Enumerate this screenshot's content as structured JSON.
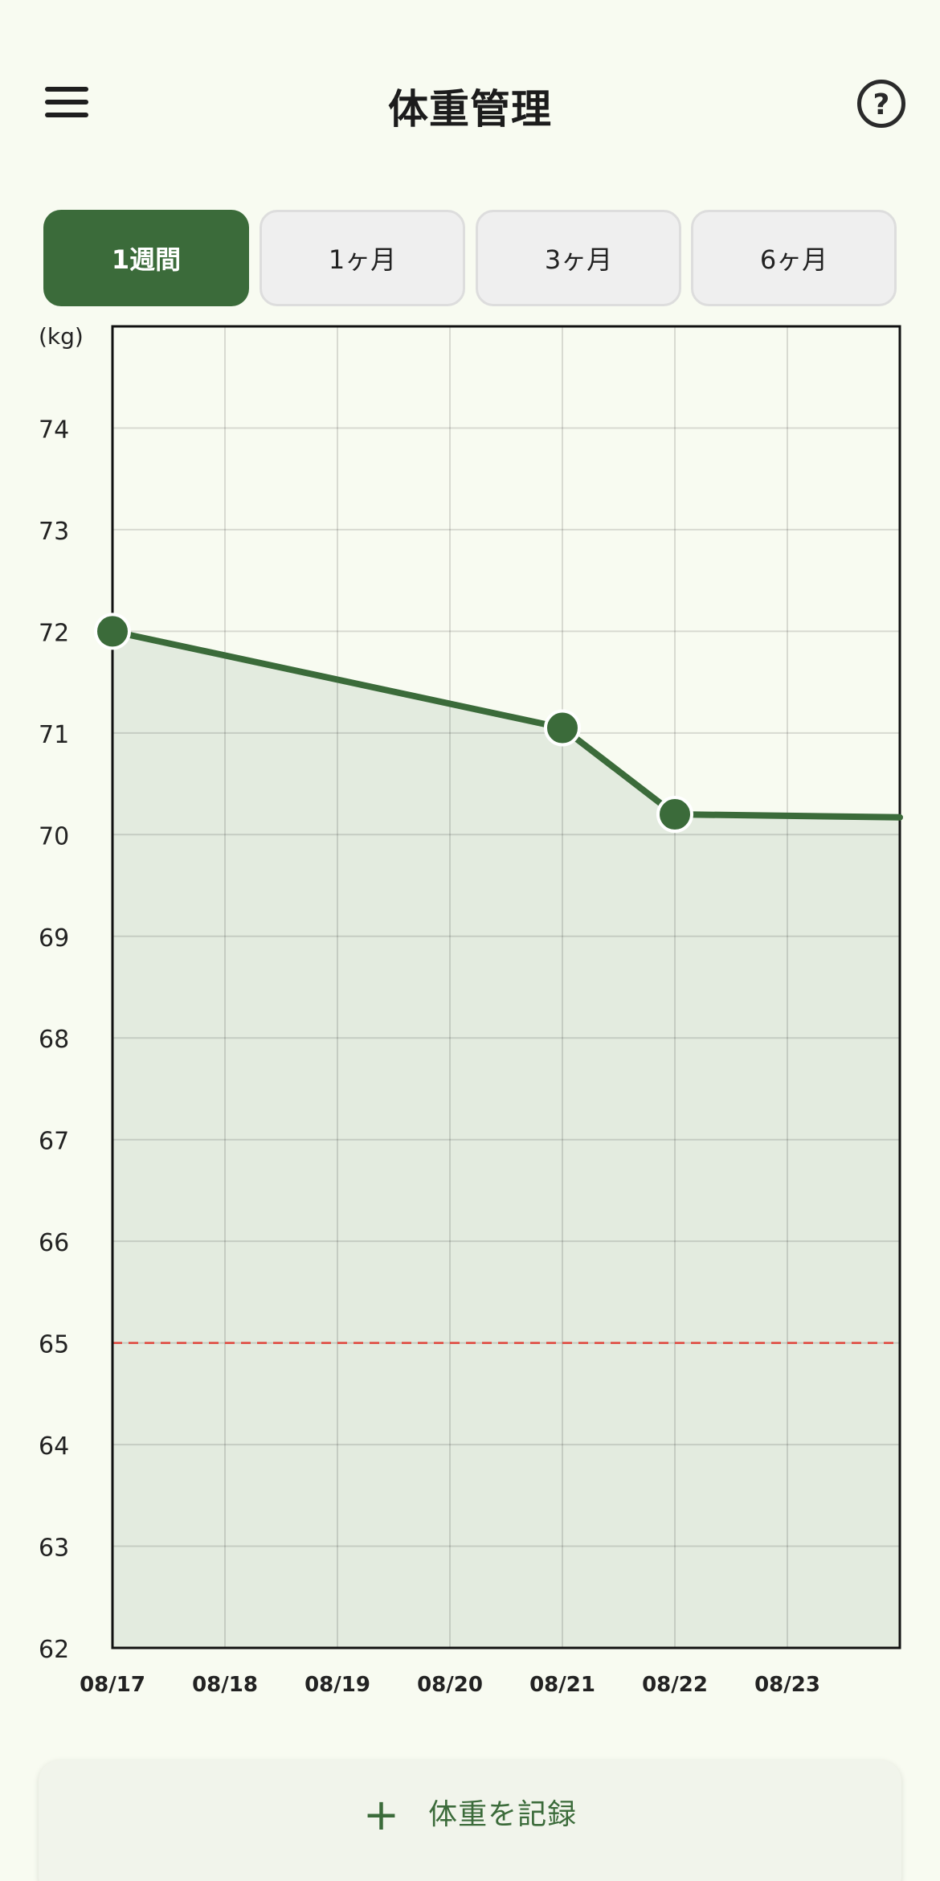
{
  "header": {
    "title": "体重管理",
    "menu_icon": "hamburger-menu-icon",
    "help_icon": "help-circle-icon"
  },
  "tabs": [
    {
      "label": "1週間",
      "active": true
    },
    {
      "label": "1ヶ月",
      "active": false
    },
    {
      "label": "3ヶ月",
      "active": false
    },
    {
      "label": "6ヶ月",
      "active": false
    }
  ],
  "record_button": {
    "icon": "plus-icon",
    "label": "体重を記録"
  },
  "colors": {
    "accent": "#3b6b3a",
    "background": "#f8fbf1",
    "target_line": "#e0443a"
  },
  "chart_data": {
    "type": "line",
    "ylabel": "(kg)",
    "ylim": [
      62,
      75
    ],
    "yticks": [
      62,
      63,
      64,
      65,
      66,
      67,
      68,
      69,
      70,
      71,
      72,
      73,
      74
    ],
    "xticks": [
      "08/17",
      "08/18",
      "08/19",
      "08/20",
      "08/21",
      "08/22",
      "08/23"
    ],
    "xlim": [
      0,
      7
    ],
    "grid": true,
    "fill_area": true,
    "target_line": 65,
    "series": [
      {
        "points": [
          {
            "x": 0,
            "y": 72.0,
            "marker": true
          },
          {
            "x": 4,
            "y": 71.05,
            "marker": true
          },
          {
            "x": 5,
            "y": 70.2,
            "marker": true
          },
          {
            "x": 7,
            "y": 70.17,
            "marker": false
          }
        ]
      }
    ]
  }
}
